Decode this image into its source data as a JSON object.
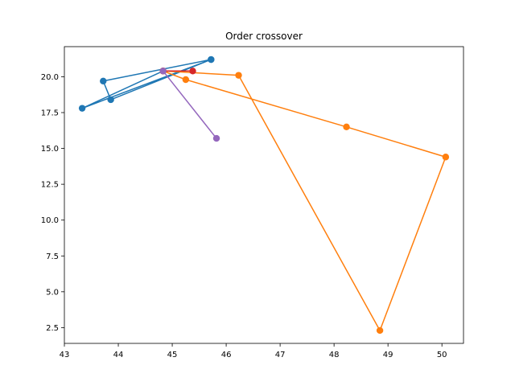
{
  "chart_data": {
    "type": "line",
    "title": "Order crossover",
    "xlabel": "",
    "ylabel": "",
    "xlim": [
      43.0,
      50.4
    ],
    "ylim": [
      1.4,
      22.1
    ],
    "xticks": [
      43,
      44,
      45,
      46,
      47,
      48,
      49,
      50
    ],
    "yticks": [
      2.5,
      5.0,
      7.5,
      10.0,
      12.5,
      15.0,
      17.5,
      20.0
    ],
    "xtick_labels": [
      "43",
      "44",
      "45",
      "46",
      "47",
      "48",
      "49",
      "50"
    ],
    "ytick_labels": [
      "2.5",
      "5.0",
      "7.5",
      "10.0",
      "12.5",
      "15.0",
      "17.5",
      "20.0"
    ],
    "grid": false,
    "series": [
      {
        "color": "#1f77b4",
        "points": [
          [
            45.72,
            21.2
          ],
          [
            43.86,
            18.4
          ],
          [
            43.72,
            19.7
          ],
          [
            45.72,
            21.2
          ],
          [
            43.33,
            17.8
          ],
          [
            44.83,
            20.4
          ]
        ]
      },
      {
        "color": "#ff7f0e",
        "points": [
          [
            44.83,
            20.4
          ],
          [
            46.23,
            20.1
          ],
          [
            48.85,
            2.3
          ],
          [
            50.07,
            14.4
          ],
          [
            48.23,
            16.5
          ],
          [
            45.25,
            19.8
          ],
          [
            44.83,
            20.4
          ]
        ]
      },
      {
        "color": "#d62728",
        "points": [
          [
            44.83,
            20.4
          ],
          [
            45.38,
            20.4
          ]
        ]
      },
      {
        "color": "#9467bd",
        "points": [
          [
            44.83,
            20.4
          ],
          [
            45.82,
            15.7
          ]
        ]
      }
    ]
  }
}
